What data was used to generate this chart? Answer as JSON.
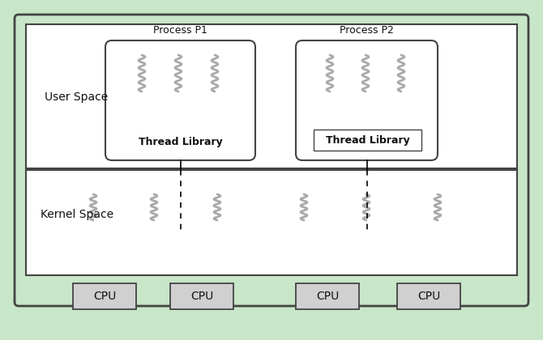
{
  "bg_color": "#c8e6c8",
  "white": "#ffffff",
  "gray_box": "#d0d0d0",
  "border_dark": "#444444",
  "border_medium": "#555555",
  "thread_color": "#aaaaaa",
  "text_color": "#111111",
  "figsize": [
    6.7,
    4.2
  ],
  "dpi": 100,
  "labels": {
    "user_space": "User Space",
    "kernel_space": "Kernel Space",
    "process1": "Process P1",
    "process2": "Process P2",
    "thread_lib": "Thread Library",
    "cpu": "CPU"
  }
}
